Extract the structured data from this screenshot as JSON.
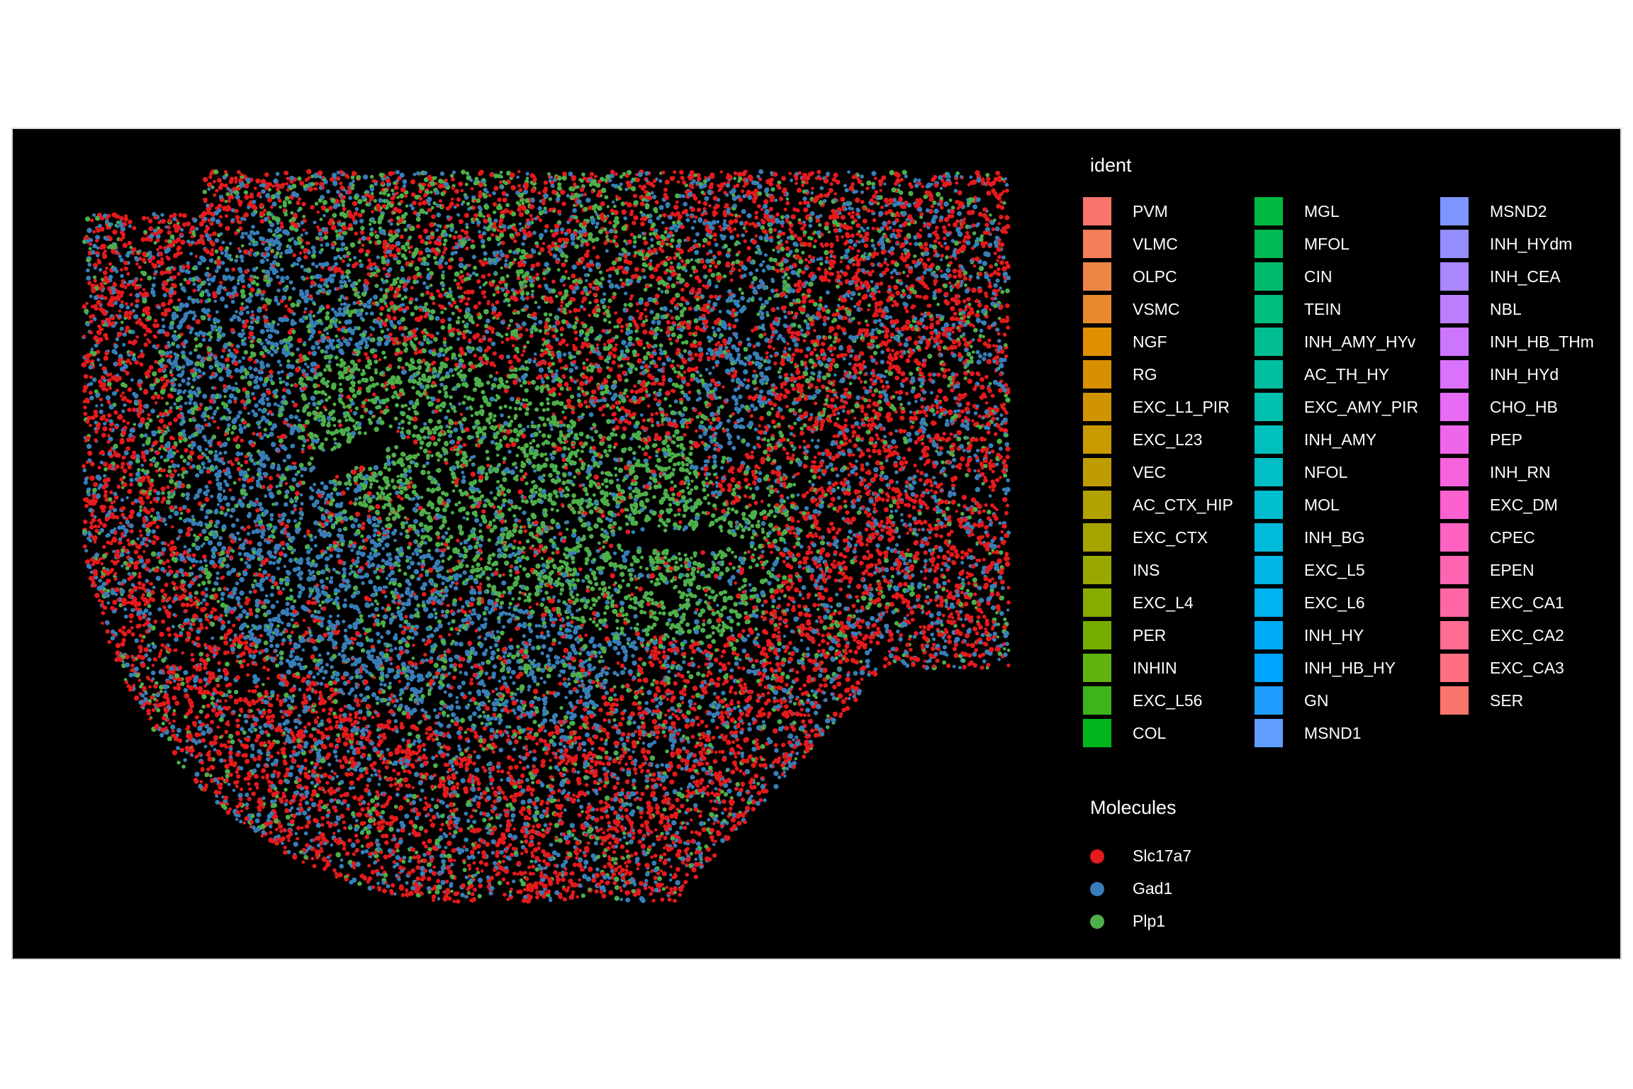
{
  "chart_data": {
    "type": "scatter",
    "title": "",
    "xlabel": "",
    "ylabel": "",
    "background": "#000000",
    "grid": false,
    "legend_position": "right",
    "series": [
      {
        "name": "Slc17a7",
        "color": "#E41A1C"
      },
      {
        "name": "Gad1",
        "color": "#377EB8"
      },
      {
        "name": "Plp1",
        "color": "#4DAF4A"
      }
    ],
    "legends": {
      "ident": {
        "title": "ident",
        "entries": [
          {
            "label": "PVM",
            "color": "#F8766D"
          },
          {
            "label": "VLMC",
            "color": "#F47D5A"
          },
          {
            "label": "OLPC",
            "color": "#EE8446"
          },
          {
            "label": "VSMC",
            "color": "#E78A2E"
          },
          {
            "label": "NGF",
            "color": "#E08F00"
          },
          {
            "label": "RG",
            "color": "#D89000"
          },
          {
            "label": "EXC_L1_PIR",
            "color": "#D09400"
          },
          {
            "label": "EXC_L23",
            "color": "#C89A00"
          },
          {
            "label": "VEC",
            "color": "#BF9D00"
          },
          {
            "label": "AC_CTX_HIP",
            "color": "#B3A100"
          },
          {
            "label": "EXC_CTX",
            "color": "#A6A400"
          },
          {
            "label": "INS",
            "color": "#98A800"
          },
          {
            "label": "EXC_L4",
            "color": "#88AB00"
          },
          {
            "label": "PER",
            "color": "#76AE00"
          },
          {
            "label": "INHIN",
            "color": "#60B20F"
          },
          {
            "label": "EXC_L56",
            "color": "#3DB41B"
          },
          {
            "label": "COL",
            "color": "#00B620"
          },
          {
            "label": "MGL",
            "color": "#00B840"
          },
          {
            "label": "MFOL",
            "color": "#00BA56"
          },
          {
            "label": "CIN",
            "color": "#00BB6C"
          },
          {
            "label": "TEIN",
            "color": "#00BD80"
          },
          {
            "label": "INH_AMY_HYv",
            "color": "#00BE90"
          },
          {
            "label": "AC_TH_HY",
            "color": "#00BFA0"
          },
          {
            "label": "EXC_AMY_PIR",
            "color": "#00C0AF"
          },
          {
            "label": "INH_AMY",
            "color": "#00C0BD"
          },
          {
            "label": "NFOL",
            "color": "#00BFC4"
          },
          {
            "label": "MOL",
            "color": "#00BDD0"
          },
          {
            "label": "INH_BG",
            "color": "#00BADC"
          },
          {
            "label": "EXC_L5",
            "color": "#00B6E6"
          },
          {
            "label": "EXC_L6",
            "color": "#00B2EF"
          },
          {
            "label": "INH_HY",
            "color": "#00ACF5"
          },
          {
            "label": "INH_HB_HY",
            "color": "#00A5FF"
          },
          {
            "label": "GN",
            "color": "#1D9EFF"
          },
          {
            "label": "MSND1",
            "color": "#619CFF"
          },
          {
            "label": "MSND2",
            "color": "#7D95FF"
          },
          {
            "label": "INH_HYdm",
            "color": "#968EFF"
          },
          {
            "label": "INH_CEA",
            "color": "#AA86FF"
          },
          {
            "label": "NBL",
            "color": "#BC7EFF"
          },
          {
            "label": "INH_HB_THm",
            "color": "#CC76FF"
          },
          {
            "label": "INH_HYd",
            "color": "#DB72FB"
          },
          {
            "label": "CHO_HB",
            "color": "#E76BF3"
          },
          {
            "label": "PEP",
            "color": "#F066E8"
          },
          {
            "label": "INH_RN",
            "color": "#F763DC"
          },
          {
            "label": "EXC_DM",
            "color": "#FC61D0"
          },
          {
            "label": "CPEC",
            "color": "#FF62C2"
          },
          {
            "label": "EPEN",
            "color": "#FF64B3"
          },
          {
            "label": "EXC_CA1",
            "color": "#FF67A4"
          },
          {
            "label": "EXC_CA2",
            "color": "#FF6C94"
          },
          {
            "label": "EXC_CA3",
            "color": "#FD7083"
          },
          {
            "label": "SER",
            "color": "#F8766D"
          }
        ]
      },
      "molecules": {
        "title": "Molecules",
        "entries": [
          {
            "label": "Slc17a7",
            "color": "#E41A1C"
          },
          {
            "label": "Gad1",
            "color": "#377EB8"
          },
          {
            "label": "Plp1",
            "color": "#4DAF4A"
          }
        ]
      }
    }
  }
}
